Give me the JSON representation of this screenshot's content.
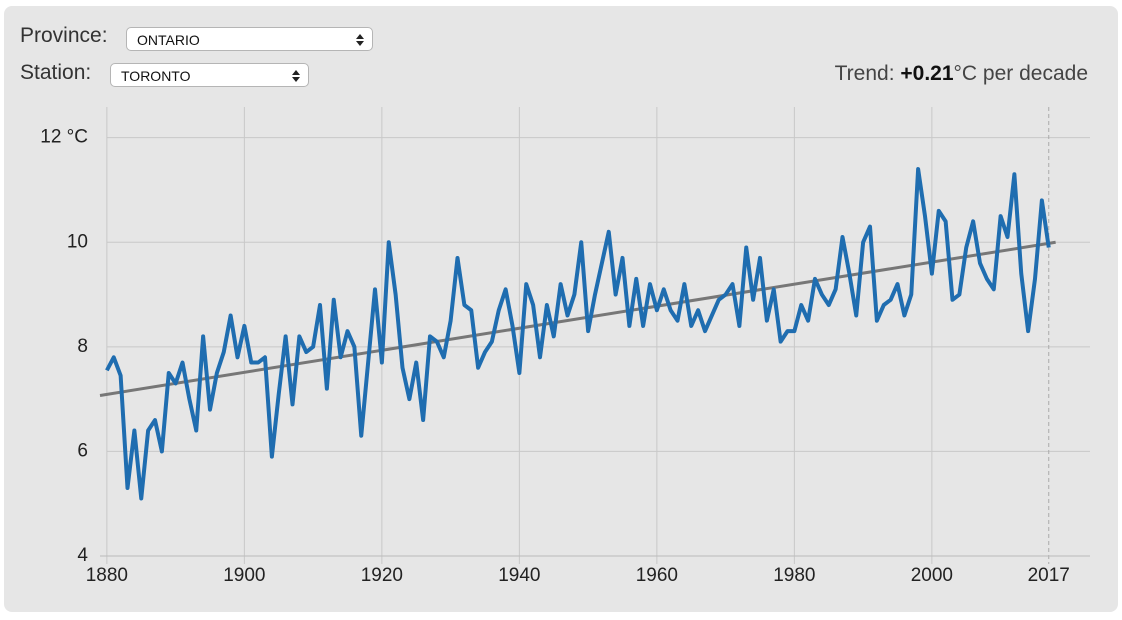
{
  "controls": {
    "province_label": "Province:",
    "province_value": "ONTARIO",
    "station_label": "Station:",
    "station_value": "TORONTO"
  },
  "chart_data": {
    "type": "line",
    "trend_label": "Trend:",
    "trend_value": "+0.21",
    "trend_unit": "°C per decade",
    "x": [
      1880,
      1881,
      1882,
      1883,
      1884,
      1885,
      1886,
      1887,
      1888,
      1889,
      1890,
      1891,
      1892,
      1893,
      1894,
      1895,
      1896,
      1897,
      1898,
      1899,
      1900,
      1901,
      1902,
      1903,
      1904,
      1905,
      1906,
      1907,
      1908,
      1909,
      1910,
      1911,
      1912,
      1913,
      1914,
      1915,
      1916,
      1917,
      1918,
      1919,
      1920,
      1921,
      1922,
      1923,
      1924,
      1925,
      1926,
      1927,
      1928,
      1929,
      1930,
      1931,
      1932,
      1933,
      1934,
      1935,
      1936,
      1937,
      1938,
      1939,
      1940,
      1941,
      1942,
      1943,
      1944,
      1945,
      1946,
      1947,
      1948,
      1949,
      1950,
      1951,
      1952,
      1953,
      1954,
      1955,
      1956,
      1957,
      1958,
      1959,
      1960,
      1961,
      1962,
      1963,
      1964,
      1965,
      1966,
      1967,
      1968,
      1969,
      1970,
      1971,
      1972,
      1973,
      1974,
      1975,
      1976,
      1977,
      1978,
      1979,
      1980,
      1981,
      1982,
      1983,
      1984,
      1985,
      1986,
      1987,
      1988,
      1989,
      1990,
      1991,
      1992,
      1993,
      1994,
      1995,
      1996,
      1997,
      1998,
      1999,
      2000,
      2001,
      2002,
      2003,
      2004,
      2005,
      2006,
      2007,
      2008,
      2009,
      2010,
      2011,
      2012,
      2013,
      2014,
      2015,
      2016,
      2017
    ],
    "series": [
      {
        "color": "#1f6db0",
        "values": [
          7.55,
          7.8,
          7.45,
          5.3,
          6.4,
          5.1,
          6.4,
          6.6,
          6.0,
          7.5,
          7.3,
          7.7,
          7.0,
          6.4,
          8.2,
          6.8,
          7.5,
          7.9,
          8.6,
          7.8,
          8.4,
          7.7,
          7.7,
          7.8,
          5.9,
          7.1,
          8.2,
          6.9,
          8.2,
          7.9,
          8.0,
          8.8,
          7.2,
          8.9,
          7.8,
          8.3,
          8.0,
          6.3,
          7.7,
          9.1,
          7.7,
          10.0,
          9.0,
          7.6,
          7.0,
          7.7,
          6.6,
          8.2,
          8.1,
          7.8,
          8.5,
          9.7,
          8.8,
          8.7,
          7.6,
          7.9,
          8.1,
          8.7,
          9.1,
          8.4,
          7.5,
          9.2,
          8.8,
          7.8,
          8.8,
          8.2,
          9.2,
          8.6,
          9.0,
          10.0,
          8.3,
          9.0,
          9.6,
          10.2,
          9.0,
          9.7,
          8.4,
          9.3,
          8.4,
          9.2,
          8.7,
          9.1,
          8.7,
          8.5,
          9.2,
          8.4,
          8.7,
          8.3,
          8.6,
          8.9,
          9.0,
          9.2,
          8.4,
          9.9,
          8.9,
          9.7,
          8.5,
          9.1,
          8.1,
          8.3,
          8.3,
          8.8,
          8.5,
          9.3,
          9.0,
          8.8,
          9.1,
          10.1,
          9.4,
          8.6,
          10.0,
          10.3,
          8.5,
          8.8,
          8.9,
          9.2,
          8.6,
          9.0,
          11.4,
          10.5,
          9.4,
          10.6,
          10.4,
          8.9,
          9.0,
          9.9,
          10.4,
          9.6,
          9.3,
          9.1,
          10.5,
          10.1,
          11.3,
          9.4,
          8.3,
          9.3,
          10.8,
          9.9
        ]
      }
    ],
    "trend": {
      "color": "#777777",
      "x": [
        1879,
        2018
      ],
      "values": [
        7.07,
        10.0
      ]
    },
    "xlim": [
      1879,
      2023
    ],
    "xticks": [
      1880,
      1900,
      1920,
      1940,
      1960,
      1980,
      2000,
      2017
    ],
    "ylim": [
      4,
      12.3
    ],
    "yticks": [
      4,
      6,
      8,
      10,
      {
        "value": 12,
        "label": "12 °C"
      }
    ],
    "grid": true
  }
}
